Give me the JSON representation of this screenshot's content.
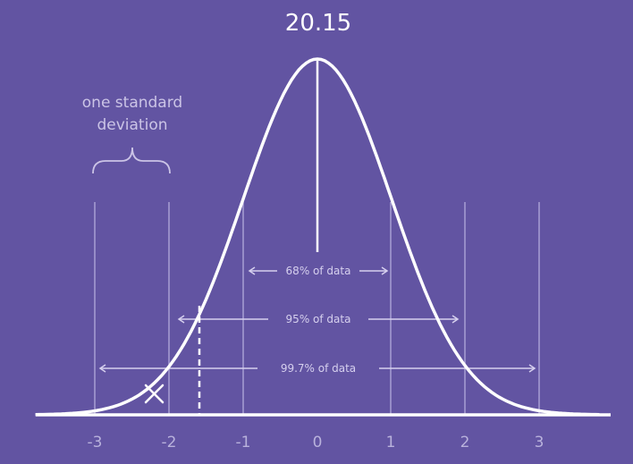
{
  "peak_value": "20.15",
  "sd_caption": {
    "line1": "one standard",
    "line2": "deviation"
  },
  "ranges": [
    {
      "label": "68% of data",
      "from": -1,
      "to": 1
    },
    {
      "label": "95% of data",
      "from": -2,
      "to": 2
    },
    {
      "label": "99.7% of data",
      "from": -3,
      "to": 3
    }
  ],
  "x_ticks": [
    "-3",
    "-2",
    "-1",
    "0",
    "1",
    "2",
    "3"
  ],
  "marker": {
    "symbol": "X",
    "x": -2.2
  },
  "dashed_line_x": -1.6,
  "colors": {
    "background": "#6254a2",
    "curve": "#ffffff",
    "guides": "#a79fd3"
  }
}
